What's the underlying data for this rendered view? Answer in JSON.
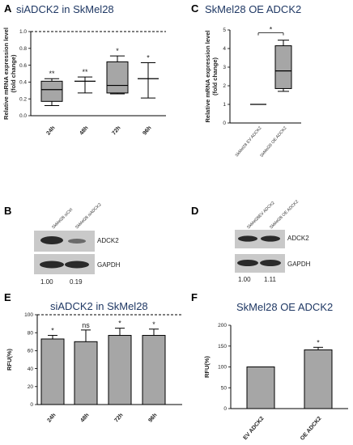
{
  "panels": {
    "A": {
      "letter": "A",
      "title": "siADCK2 in SkMel28"
    },
    "B": {
      "letter": "B",
      "lanes": [
        "SkMel28 siCtrl",
        "SkMel28 siADCK2"
      ],
      "labels": [
        "ADCK2",
        "GAPDH"
      ],
      "quant": [
        "1.00",
        "0.19"
      ]
    },
    "C": {
      "letter": "C",
      "title": "SkMel28 OE ADCK2"
    },
    "D": {
      "letter": "D",
      "lanes": [
        "SkMel28EV ADCK2",
        "SkMel28 OE ADCK2"
      ],
      "labels": [
        "ADCK2",
        "GAPDH"
      ],
      "quant": [
        "1.00",
        "1.11"
      ]
    },
    "E": {
      "letter": "E",
      "title": "siADCK2 in SkMel28"
    },
    "F": {
      "letter": "F",
      "title": "SkMel28 OE ADCK2"
    }
  },
  "chart_data": [
    {
      "panel": "A",
      "type": "box",
      "title": "siADCK2 in SkMel28",
      "ylabel": "Relative mRNA expression level (fold change)",
      "categories": [
        "24h",
        "48h",
        "72h",
        "96h"
      ],
      "boxes": [
        {
          "min": 0.12,
          "q1": 0.17,
          "median": 0.31,
          "q3": 0.41,
          "max": 0.44,
          "sig": "**"
        },
        {
          "min": 0.27,
          "q1": 0.41,
          "median": 0.41,
          "q3": 0.41,
          "max": 0.46,
          "sig": "**"
        },
        {
          "min": 0.26,
          "q1": 0.27,
          "median": 0.36,
          "q3": 0.64,
          "max": 0.71,
          "sig": "*"
        },
        {
          "min": 0.21,
          "q1": 0.44,
          "median": 0.44,
          "q3": 0.44,
          "max": 0.63,
          "sig": "*"
        }
      ],
      "reference_line": 1.0,
      "ylim": [
        0,
        1.0
      ],
      "yticks": [
        "0.0",
        "0.2",
        "0.4",
        "0.6",
        "0.8",
        "1.0"
      ]
    },
    {
      "panel": "C",
      "type": "box",
      "title": "SkMel28 OE ADCK2",
      "ylabel": "Relative mRNA expression level (fold change)",
      "categories": [
        "SkMel28 EV ADCK2",
        "SkMel28 OE ADCK2"
      ],
      "boxes": [
        {
          "min": 1.0,
          "q1": 1.0,
          "median": 1.0,
          "q3": 1.0,
          "max": 1.0
        },
        {
          "min": 1.7,
          "q1": 1.85,
          "median": 2.8,
          "q3": 4.15,
          "max": 4.45
        }
      ],
      "significance": "*",
      "ylim": [
        0,
        5
      ],
      "yticks": [
        "0",
        "1",
        "2",
        "3",
        "4",
        "5"
      ]
    },
    {
      "panel": "E",
      "type": "bar",
      "title": "siADCK2 in SkMel28",
      "ylabel": "RFU(%)",
      "categories": [
        "24h",
        "48h",
        "72h",
        "96h"
      ],
      "values": [
        73,
        70,
        77,
        77
      ],
      "errors": [
        4,
        13,
        8,
        7
      ],
      "sig": [
        "*",
        "ns",
        "*",
        "*"
      ],
      "reference_line": 100,
      "ylim": [
        0,
        100
      ],
      "yticks": [
        "0",
        "20",
        "40",
        "60",
        "80",
        "100"
      ]
    },
    {
      "panel": "F",
      "type": "bar",
      "title": "SkMel28 OE ADCK2",
      "ylabel": "RFU(%)",
      "categories": [
        "EV ADCK2",
        "OE ADCK2"
      ],
      "values": [
        100,
        141
      ],
      "errors": [
        0,
        6
      ],
      "sig": [
        "",
        "*"
      ],
      "ylim": [
        0,
        200
      ],
      "yticks": [
        "0",
        "50",
        "100",
        "150",
        "200"
      ]
    }
  ]
}
